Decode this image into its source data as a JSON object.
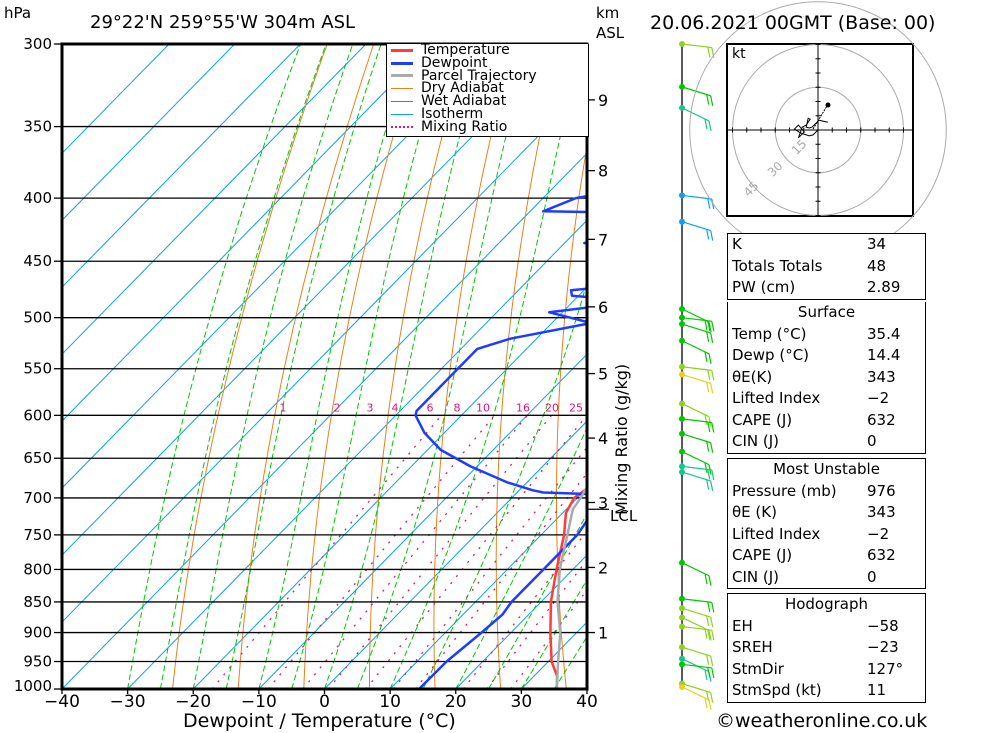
{
  "header": {
    "pressure_unit": "hPa",
    "location": "29°22'N  259°55'W  304m  ASL",
    "km_label": "km",
    "asl_label": "ASL",
    "datetime": "20.06.2021  00GMT  (Base: 00)"
  },
  "colors": {
    "temperature": "#ff3b3b",
    "dewpoint": "#1e3cff",
    "parcel": "#aaaaaa",
    "dry_adiabat": "#e8801e",
    "wet_adiabat": "#00c800",
    "isotherm": "#0aa0f0",
    "mixing_ratio": "#e0147a"
  },
  "legend": [
    {
      "label": "Temperature",
      "key": "temperature",
      "style": "solid"
    },
    {
      "label": "Dewpoint",
      "key": "dewpoint",
      "style": "solid"
    },
    {
      "label": "Parcel Trajectory",
      "key": "parcel",
      "style": "solid"
    },
    {
      "label": "Dry Adiabat",
      "key": "dry_adiabat",
      "style": "thin"
    },
    {
      "label": "Wet Adiabat",
      "key": "wet_adiabat",
      "style": "thin"
    },
    {
      "label": "Isotherm",
      "key": "isotherm",
      "style": "thin"
    },
    {
      "label": "Mixing Ratio",
      "key": "mixing_ratio",
      "style": "dotted"
    }
  ],
  "chart_data": {
    "type": "line",
    "title": "Skew-T log-P sounding",
    "xlabel": "Dewpoint / Temperature (°C)",
    "ylabel": "hPa",
    "xlim": [
      -40,
      40
    ],
    "ylim": [
      1000,
      300
    ],
    "x_ticks": [
      "−40",
      "−30",
      "−20",
      "−10",
      "0",
      "10",
      "20",
      "30",
      "40"
    ],
    "x_tick_values": [
      -40,
      -30,
      -20,
      -10,
      0,
      10,
      20,
      30,
      40
    ],
    "y_ticks": [
      300,
      350,
      400,
      450,
      500,
      550,
      600,
      650,
      700,
      750,
      800,
      850,
      900,
      950,
      1000
    ],
    "km_ticks": [
      {
        "label": "1",
        "p": 900
      },
      {
        "label": "2",
        "p": 797
      },
      {
        "label": "3",
        "p": 706
      },
      {
        "label": "4",
        "p": 626
      },
      {
        "label": "5",
        "p": 555
      },
      {
        "label": "6",
        "p": 490
      },
      {
        "label": "7",
        "p": 432
      },
      {
        "label": "8",
        "p": 380
      },
      {
        "label": "9",
        "p": 333
      }
    ],
    "lcl": {
      "label": "LCL",
      "p": 715
    },
    "mixing_ratio_axis_label": "Mixing Ratio (g/kg)",
    "mixing_ratio_labels": [
      "1",
      "2",
      "3",
      "4",
      "6",
      "8",
      "10",
      "16",
      "20",
      "25"
    ],
    "mixing_ratio_values": [
      1,
      2,
      3,
      4,
      6,
      8,
      10,
      16,
      20,
      25
    ],
    "mixing_ratio_label_p": 600,
    "series": [
      {
        "name": "Temperature",
        "key": "temperature",
        "points": [
          [
            1000,
            35.4
          ],
          [
            976,
            33.5
          ],
          [
            950,
            30.5
          ],
          [
            900,
            26
          ],
          [
            850,
            21.5
          ],
          [
            800,
            17.5
          ],
          [
            750,
            13.5
          ],
          [
            720,
            10.5
          ],
          [
            700,
            9.5
          ],
          [
            690,
            10
          ],
          [
            670,
            11
          ],
          [
            650,
            9.5
          ],
          [
            600,
            6.5
          ],
          [
            550,
            3
          ],
          [
            500,
            -1
          ],
          [
            480,
            -2.5
          ],
          [
            450,
            -6
          ],
          [
            420,
            -9
          ],
          [
            400,
            -11
          ],
          [
            380,
            -14
          ],
          [
            350,
            -19
          ],
          [
            330,
            -22.5
          ],
          [
            310,
            -25.5
          ],
          [
            300,
            -26.5
          ]
        ]
      },
      {
        "name": "Dewpoint",
        "key": "dewpoint",
        "points": [
          [
            1000,
            14.4
          ],
          [
            950,
            14.5
          ],
          [
            900,
            15.5
          ],
          [
            870,
            16
          ],
          [
            850,
            15.5
          ],
          [
            800,
            15.5
          ],
          [
            750,
            15.5
          ],
          [
            720,
            14.5
          ],
          [
            705,
            12
          ],
          [
            695,
            11.5
          ],
          [
            693,
            4
          ],
          [
            690,
            2
          ],
          [
            680,
            -3
          ],
          [
            660,
            -11
          ],
          [
            640,
            -18
          ],
          [
            620,
            -23
          ],
          [
            600,
            -27
          ],
          [
            595,
            -27.5
          ],
          [
            560,
            -27.5
          ],
          [
            530,
            -27.5
          ],
          [
            520,
            -24
          ],
          [
            505,
            -14
          ],
          [
            495,
            -22
          ],
          [
            490,
            -16
          ],
          [
            485,
            -10
          ],
          [
            480,
            -21
          ],
          [
            475,
            -22
          ],
          [
            470,
            -13
          ],
          [
            465,
            -19
          ],
          [
            460,
            -12
          ],
          [
            455,
            -11
          ],
          [
            450,
            -7
          ],
          [
            445,
            -9
          ],
          [
            440,
            -10
          ],
          [
            435,
            -27
          ],
          [
            428,
            -25
          ],
          [
            425,
            -13
          ],
          [
            420,
            -10
          ],
          [
            418,
            -16
          ],
          [
            412,
            -12
          ],
          [
            410,
            -38
          ],
          [
            400,
            -35
          ],
          [
            390,
            -25
          ],
          [
            385,
            -18
          ],
          [
            380,
            -32
          ],
          [
            360,
            -18
          ],
          [
            350,
            -30
          ],
          [
            330,
            -34
          ],
          [
            303,
            -32
          ],
          [
            301,
            -29
          ],
          [
            300,
            -22
          ]
        ]
      },
      {
        "name": "Parcel Trajectory",
        "key": "parcel",
        "points": [
          [
            1000,
            35.4
          ],
          [
            950,
            31.5
          ],
          [
            900,
            27.5
          ],
          [
            850,
            22.5
          ],
          [
            800,
            18
          ],
          [
            750,
            14
          ],
          [
            715,
            11
          ],
          [
            700,
            10.5
          ],
          [
            650,
            8
          ],
          [
            600,
            5.5
          ],
          [
            550,
            2.5
          ],
          [
            500,
            -1
          ],
          [
            450,
            -5
          ],
          [
            400,
            -10
          ],
          [
            350,
            -15
          ],
          [
            300,
            -21
          ]
        ]
      }
    ],
    "grid": true,
    "legend_position": "top-right"
  },
  "wind_profile": {
    "label": "wind barbs by height",
    "levels": [
      {
        "p": 300,
        "color": "#8cd21e"
      },
      {
        "p": 325,
        "color": "#00c800"
      },
      {
        "p": 338,
        "color": "#14c88c"
      },
      {
        "p": 398,
        "color": "#0aa0f0"
      },
      {
        "p": 418,
        "color": "#0aa0f0"
      },
      {
        "p": 492,
        "color": "#00c800"
      },
      {
        "p": 500,
        "color": "#00c800"
      },
      {
        "p": 506,
        "color": "#00c800"
      },
      {
        "p": 522,
        "color": "#00c800"
      },
      {
        "p": 548,
        "color": "#8cd21e"
      },
      {
        "p": 556,
        "color": "#e6d21e"
      },
      {
        "p": 587,
        "color": "#8cd21e"
      },
      {
        "p": 604,
        "color": "#00c800"
      },
      {
        "p": 621,
        "color": "#00c800"
      },
      {
        "p": 642,
        "color": "#00c800"
      },
      {
        "p": 660,
        "color": "#14c88c"
      },
      {
        "p": 667,
        "color": "#14c88c"
      },
      {
        "p": 790,
        "color": "#00c800"
      },
      {
        "p": 845,
        "color": "#00c800"
      },
      {
        "p": 860,
        "color": "#8cd21e"
      },
      {
        "p": 875,
        "color": "#8cd21e"
      },
      {
        "p": 890,
        "color": "#8cd21e"
      },
      {
        "p": 925,
        "color": "#8cd21e"
      },
      {
        "p": 945,
        "color": "#14c88c"
      },
      {
        "p": 955,
        "color": "#00c800"
      },
      {
        "p": 990,
        "color": "#8cd21e"
      },
      {
        "p": 996,
        "color": "#e6d21e"
      }
    ]
  },
  "hodograph": {
    "unit": "kt",
    "ring_labels": [
      "15",
      "30",
      "45"
    ]
  },
  "indices": {
    "general": [
      {
        "label": "K",
        "value": "34"
      },
      {
        "label": "Totals Totals",
        "value": "48"
      },
      {
        "label": "PW (cm)",
        "value": "2.89"
      }
    ],
    "surface": {
      "title": "Surface",
      "rows": [
        {
          "label": "Temp (°C)",
          "value": "35.4"
        },
        {
          "label": "Dewp (°C)",
          "value": "14.4"
        },
        {
          "label": "θE(K)",
          "value": "343"
        },
        {
          "label": "Lifted Index",
          "value": "−2"
        },
        {
          "label": "CAPE (J)",
          "value": "632"
        },
        {
          "label": "CIN (J)",
          "value": "0"
        }
      ]
    },
    "most_unstable": {
      "title": "Most Unstable",
      "rows": [
        {
          "label": "Pressure (mb)",
          "value": "976"
        },
        {
          "label": "θE (K)",
          "value": "343"
        },
        {
          "label": "Lifted Index",
          "value": "−2"
        },
        {
          "label": "CAPE (J)",
          "value": "632"
        },
        {
          "label": "CIN (J)",
          "value": "0"
        }
      ]
    },
    "hodograph": {
      "title": "Hodograph",
      "rows": [
        {
          "label": "EH",
          "value": "−58"
        },
        {
          "label": "SREH",
          "value": "−23"
        },
        {
          "label": "StmDir",
          "value": "127°"
        },
        {
          "label": "StmSpd (kt)",
          "value": "11"
        }
      ]
    }
  },
  "footer": {
    "copyright": "©weatheronline.co.uk"
  }
}
